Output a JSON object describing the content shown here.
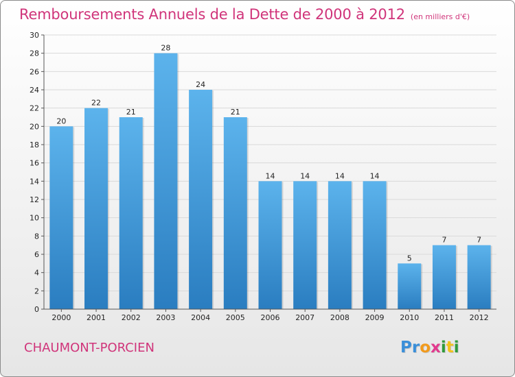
{
  "header": {
    "title": "Remboursements Annuels de la Dette de 2000 à 2012",
    "subtitle": "(en milliers d'€)"
  },
  "footer": {
    "place": "CHAUMONT-PORCIEN",
    "logo": {
      "text": "Proxiti",
      "letters": [
        {
          "char": "P",
          "color": "#3a8fd9"
        },
        {
          "char": "r",
          "color": "#3a8fd9"
        },
        {
          "char": "o",
          "color": "#f29a1b"
        },
        {
          "char": "x",
          "color": "#e23a8e"
        },
        {
          "char": "i",
          "color": "#2f9a3a"
        },
        {
          "char": "t",
          "color": "#f2c21b"
        },
        {
          "char": "i",
          "color": "#2f9a3a"
        }
      ]
    }
  },
  "colors": {
    "title": "#d0347a",
    "bar_top": "#5cb3ec",
    "bar_bottom": "#2a7dc0",
    "grid": "#d9d9d9",
    "axis": "#555555"
  },
  "chart_data": {
    "type": "bar",
    "title": "Remboursements Annuels de la Dette de 2000 à 2012",
    "subtitle": "(en milliers d'€)",
    "categories": [
      "2000",
      "2001",
      "2002",
      "2003",
      "2004",
      "2005",
      "2006",
      "2007",
      "2008",
      "2009",
      "2010",
      "2011",
      "2012"
    ],
    "values": [
      20,
      22,
      21,
      28,
      24,
      21,
      14,
      14,
      14,
      14,
      5,
      7,
      7
    ],
    "ylim": [
      0,
      30
    ],
    "yticks": [
      0,
      2,
      4,
      6,
      8,
      10,
      12,
      14,
      16,
      18,
      20,
      22,
      24,
      26,
      28,
      30
    ],
    "grid": true,
    "legend": "none"
  }
}
